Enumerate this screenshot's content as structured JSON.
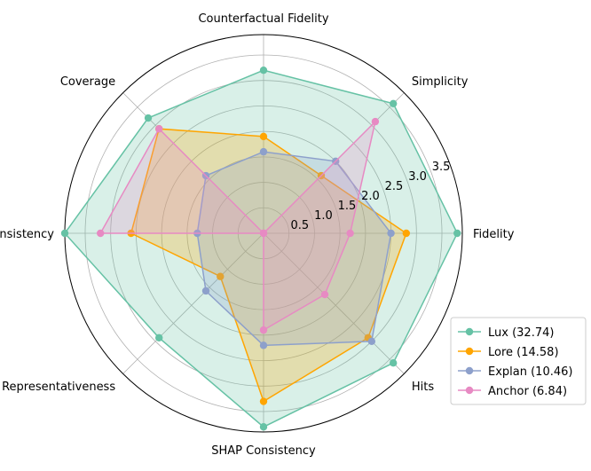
{
  "chart_data": {
    "type": "radar",
    "axes": [
      "Fidelity",
      "Simplicity",
      "Counterfactual Fidelity",
      "Coverage",
      "Consistency",
      "Representativeness",
      "SHAP Consistency",
      "Hits"
    ],
    "radial_ticks": [
      0.5,
      1.0,
      1.5,
      2.0,
      2.5,
      3.0,
      3.5
    ],
    "radial_tick_labels": [
      "0.5",
      "1.0",
      "1.5",
      "2.0",
      "2.5",
      "3.0",
      "3.5"
    ],
    "rlim": [
      0,
      3.9
    ],
    "grid": true,
    "legend_position": "lower-right",
    "series": [
      {
        "name": "Lux (32.74)",
        "color": "#66c2a5",
        "values": [
          3.8,
          3.6,
          3.2,
          3.2,
          3.9,
          2.9,
          3.8,
          3.6
        ]
      },
      {
        "name": "Lore (14.58)",
        "color": "#ffa500",
        "values": [
          2.8,
          1.6,
          1.9,
          2.9,
          2.6,
          1.2,
          3.3,
          2.9
        ]
      },
      {
        "name": "Explan (10.46)",
        "color": "#8da0cb",
        "values": [
          2.5,
          2.0,
          1.6,
          1.6,
          1.3,
          1.6,
          2.2,
          3.0
        ]
      },
      {
        "name": "Anchor (6.84)",
        "color": "#e78ac3",
        "values": [
          1.7,
          3.1,
          0.0,
          2.9,
          3.2,
          0.0,
          1.9,
          1.7
        ]
      }
    ]
  }
}
